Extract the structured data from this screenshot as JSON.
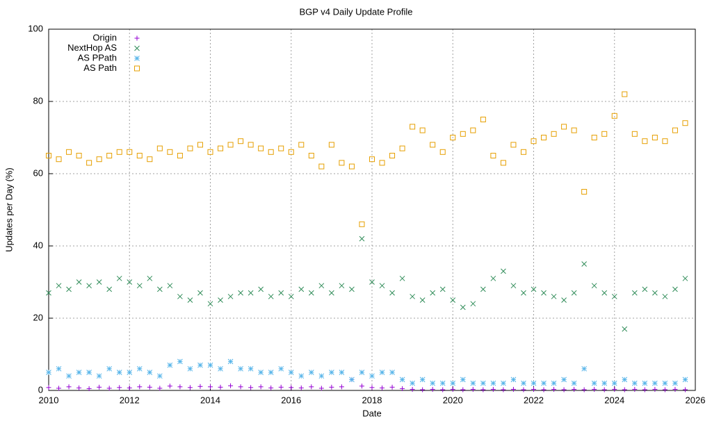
{
  "chart_data": {
    "type": "scatter",
    "title": "BGP v4 Daily Update Profile",
    "x_label": "Date",
    "y_label": "Updates per Day (%)",
    "xlim": [
      2010,
      2026
    ],
    "xticks": [
      2010,
      2012,
      2014,
      2016,
      2018,
      2020,
      2022,
      2024,
      2026
    ],
    "ylim": [
      0,
      100
    ],
    "yticks": [
      0,
      20,
      40,
      60,
      80,
      100
    ],
    "grid": true,
    "legend": "top-left",
    "x": [
      2010,
      2010.25,
      2010.5,
      2010.75,
      2011,
      2011.25,
      2011.5,
      2011.75,
      2012,
      2012.25,
      2012.5,
      2012.75,
      2013,
      2013.25,
      2013.5,
      2013.75,
      2014,
      2014.25,
      2014.5,
      2014.75,
      2015,
      2015.25,
      2015.5,
      2015.75,
      2016,
      2016.25,
      2016.5,
      2016.75,
      2017,
      2017.25,
      2017.5,
      2017.75,
      2018,
      2018.25,
      2018.5,
      2018.75,
      2019,
      2019.25,
      2019.5,
      2019.75,
      2020,
      2020.25,
      2020.5,
      2020.75,
      2021,
      2021.25,
      2021.5,
      2021.75,
      2022,
      2022.25,
      2022.5,
      2022.75,
      2023,
      2023.25,
      2023.5,
      2023.75,
      2024,
      2024.25,
      2024.5,
      2024.75,
      2025,
      2025.25,
      2025.5,
      2025.75
    ],
    "series": [
      {
        "name": "Origin",
        "color": "#9400d3",
        "marker": "plus",
        "values": [
          0.8,
          0.6,
          1,
          0.7,
          0.5,
          0.9,
          0.6,
          0.8,
          0.7,
          1,
          0.9,
          0.6,
          1.2,
          1,
          0.8,
          1.1,
          1,
          0.9,
          1.3,
          1,
          0.8,
          1,
          0.7,
          0.9,
          0.8,
          0.7,
          1,
          0.6,
          0.9,
          1,
          3,
          1.2,
          0.8,
          0.7,
          0.9,
          0.5,
          0.3,
          0.2,
          0.3,
          0.2,
          0.3,
          0.2,
          0.3,
          0.2,
          0.3,
          0.2,
          0.3,
          0.2,
          0.3,
          0.2,
          0.3,
          0.2,
          0.3,
          0.2,
          0.3,
          0.2,
          0.3,
          0.2,
          0.3,
          0.2,
          0.3,
          0.2,
          0.3,
          0.2
        ]
      },
      {
        "name": "NextHop AS",
        "color": "#2e8b57",
        "marker": "cross",
        "values": [
          27,
          29,
          28,
          30,
          29,
          30,
          28,
          31,
          30,
          29,
          31,
          28,
          29,
          26,
          25,
          27,
          24,
          25,
          26,
          27,
          27,
          28,
          26,
          27,
          26,
          28,
          27,
          29,
          27,
          29,
          28,
          42,
          30,
          29,
          27,
          31,
          26,
          25,
          27,
          28,
          25,
          23,
          24,
          28,
          31,
          33,
          29,
          27,
          28,
          27,
          26,
          25,
          27,
          35,
          29,
          27,
          26,
          17,
          27,
          28,
          27,
          26,
          28,
          31
        ]
      },
      {
        "name": "AS PPath",
        "color": "#56b4e9",
        "marker": "star",
        "values": [
          5,
          6,
          4,
          5,
          5,
          4,
          6,
          5,
          5,
          6,
          5,
          4,
          7,
          8,
          6,
          7,
          7,
          6,
          8,
          6,
          6,
          5,
          5,
          6,
          5,
          4,
          5,
          4,
          5,
          5,
          3,
          5,
          4,
          5,
          5,
          3,
          2,
          3,
          2,
          2,
          2,
          3,
          2,
          2,
          2,
          2,
          3,
          2,
          2,
          2,
          2,
          3,
          2,
          6,
          2,
          2,
          2,
          3,
          2,
          2,
          2,
          2,
          2,
          3
        ]
      },
      {
        "name": "AS Path",
        "color": "#e69f00",
        "marker": "square",
        "values": [
          65,
          64,
          66,
          65,
          63,
          64,
          65,
          66,
          66,
          65,
          64,
          67,
          66,
          65,
          67,
          68,
          66,
          67,
          68,
          69,
          68,
          67,
          66,
          67,
          66,
          68,
          65,
          62,
          68,
          63,
          62,
          46,
          64,
          63,
          65,
          67,
          73,
          72,
          68,
          66,
          70,
          71,
          72,
          75,
          65,
          63,
          68,
          66,
          69,
          70,
          71,
          73,
          72,
          55,
          70,
          71,
          76,
          82,
          71,
          69,
          70,
          69,
          72,
          74
        ]
      }
    ]
  }
}
